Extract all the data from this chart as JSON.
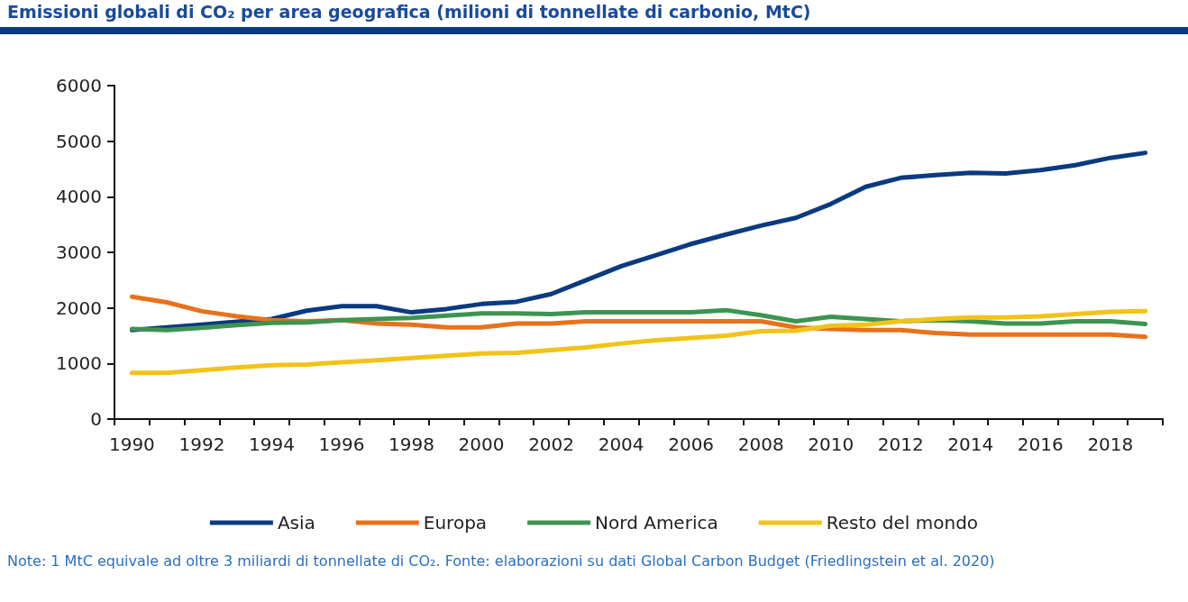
{
  "chart_data": {
    "type": "line",
    "title": "Emissioni globali di CO₂ per area geografica (milioni di tonnellate di carbonio, MtC)",
    "annotations": [
      "Note: 1 MtC equivale ad oltre 3 miliardi di tonnellate di CO₂. Fonte: elaborazioni su dati Global Carbon Budget (Friedlingstein et al. 2020)"
    ],
    "categories": [
      "1990",
      null,
      "1992",
      null,
      "1994",
      null,
      "1996",
      null,
      "1998",
      null,
      "2000",
      null,
      "2002",
      null,
      "2004",
      null,
      "2006",
      null,
      "2008",
      null,
      "2010",
      null,
      "2012",
      null,
      "2014",
      null,
      "2016",
      null,
      "2018",
      null
    ],
    "series": [
      {
        "name": "Asia",
        "color": "#0a3a80",
        "values": [
          1600,
          1650,
          1700,
          1750,
          1800,
          1950,
          2030,
          2030,
          1920,
          1980,
          2070,
          2110,
          2250,
          2500,
          2750,
          2950,
          3150,
          3320,
          3480,
          3620,
          3870,
          4180,
          4340,
          4390,
          4430,
          4420,
          4480,
          4570,
          4700,
          4790
        ]
      },
      {
        "name": "Europa",
        "color": "#e8711c",
        "values": [
          2200,
          2100,
          1940,
          1850,
          1780,
          1760,
          1780,
          1720,
          1700,
          1650,
          1650,
          1720,
          1720,
          1760,
          1760,
          1760,
          1760,
          1760,
          1760,
          1650,
          1620,
          1600,
          1600,
          1550,
          1520,
          1520,
          1520,
          1520,
          1520,
          1480
        ]
      },
      {
        "name": "Nord America",
        "color": "#3d9450",
        "values": [
          1620,
          1600,
          1640,
          1690,
          1730,
          1740,
          1780,
          1800,
          1820,
          1860,
          1900,
          1900,
          1890,
          1920,
          1920,
          1920,
          1920,
          1960,
          1870,
          1760,
          1840,
          1800,
          1760,
          1780,
          1760,
          1720,
          1720,
          1760,
          1760,
          1710
        ]
      },
      {
        "name": "Resto del mondo",
        "color": "#f2c318",
        "values": [
          830,
          830,
          880,
          930,
          970,
          980,
          1020,
          1060,
          1100,
          1140,
          1180,
          1190,
          1240,
          1290,
          1360,
          1420,
          1460,
          1500,
          1580,
          1590,
          1680,
          1700,
          1760,
          1800,
          1830,
          1830,
          1850,
          1890,
          1930,
          1940
        ]
      }
    ],
    "ylim": [
      0,
      6000
    ],
    "yticks": [
      0,
      1000,
      2000,
      3000,
      4000,
      5000,
      6000
    ],
    "grid": false,
    "legend": "bottom",
    "marker": "none",
    "line_style": "solid"
  }
}
